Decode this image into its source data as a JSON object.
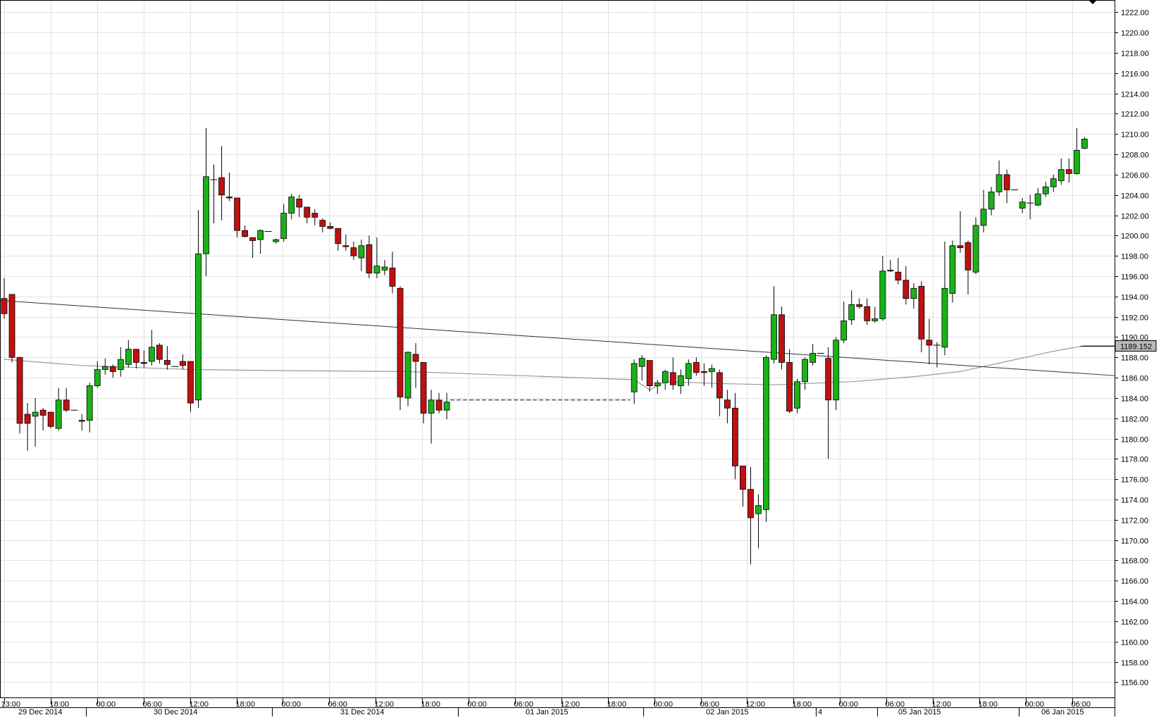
{
  "chart_data": {
    "type": "candlestick",
    "title": "",
    "xlabel": "",
    "ylabel": "",
    "ylim": [
      1154.5,
      1223.2
    ],
    "grid": true,
    "y_ticks": [
      "1222.00",
      "1220.00",
      "1218.00",
      "1216.00",
      "1214.00",
      "1212.00",
      "1210.00",
      "1208.00",
      "1206.00",
      "1204.00",
      "1202.00",
      "1200.00",
      "1198.00",
      "1196.00",
      "1194.00",
      "1192.00",
      "1190.00",
      "1188.00",
      "1186.00",
      "1184.00",
      "1182.00",
      "1180.00",
      "1178.00",
      "1176.00",
      "1174.00",
      "1172.00",
      "1170.00",
      "1168.00",
      "1166.00",
      "1164.00",
      "1162.00",
      "1160.00",
      "1158.00",
      "1156.00"
    ],
    "time_ticks": [
      "13:00",
      "18:00",
      "00:00",
      "06:00",
      "12:00",
      "18:00",
      "00:00",
      "06:00",
      "12:00",
      "18:00",
      "00:00",
      "06:00",
      "12:00",
      "18:00",
      "00:00",
      "06:00",
      "12:00",
      "18:00",
      "00:00",
      "06:00",
      "12:00",
      "18:00",
      "00:00",
      "06:00"
    ],
    "date_labels": [
      "29 Dec 2014",
      "30 Dec 2014",
      "31 Dec 2014",
      "01 Jan 2015",
      "02 Jan 2015",
      "4",
      "05 Jan 2015",
      "06 Jan 2015"
    ],
    "last_price": "1189.152",
    "colors": {
      "up": "#19b219",
      "down": "#c01010",
      "wick": "#000000",
      "grid": "#e2e2e2",
      "trend": "#333333",
      "average": "#999999"
    },
    "candles": [
      [
        1193.8,
        1195.8,
        1191.8,
        1192.3
      ],
      [
        1194.2,
        1194.2,
        1187.5,
        1188.0
      ],
      [
        1188.0,
        1188.0,
        1180.5,
        1181.5
      ],
      [
        1182.4,
        1183.5,
        1178.8,
        1181.5
      ],
      [
        1182.2,
        1184.0,
        1179.2,
        1182.6
      ],
      [
        1182.8,
        1183.0,
        1180.8,
        1182.3
      ],
      [
        1182.6,
        1182.6,
        1181.0,
        1181.2
      ],
      [
        1181.0,
        1185.0,
        1180.8,
        1183.8
      ],
      [
        1183.8,
        1185.0,
        1182.6,
        1182.8
      ],
      [
        1182.8,
        1182.8,
        1182.8,
        1182.8
      ],
      [
        1181.8,
        1182.4,
        1180.8,
        1181.7
      ],
      [
        1181.8,
        1185.5,
        1180.6,
        1185.2
      ],
      [
        1185.2,
        1187.6,
        1185.0,
        1186.8
      ],
      [
        1186.8,
        1187.9,
        1186.3,
        1187.1
      ],
      [
        1187.1,
        1187.3,
        1186.0,
        1186.6
      ],
      [
        1186.8,
        1189.0,
        1186.1,
        1187.8
      ],
      [
        1187.3,
        1189.7,
        1187.0,
        1188.8
      ],
      [
        1188.8,
        1188.8,
        1186.9,
        1187.5
      ],
      [
        1187.5,
        1188.7,
        1187.0,
        1187.4
      ],
      [
        1187.6,
        1190.7,
        1187.2,
        1189.0
      ],
      [
        1189.2,
        1189.4,
        1187.4,
        1187.8
      ],
      [
        1187.7,
        1189.1,
        1186.8,
        1187.3
      ],
      [
        1187.1,
        1187.1,
        1187.1,
        1187.1
      ],
      [
        1187.6,
        1188.3,
        1186.8,
        1187.2
      ],
      [
        1187.6,
        1187.6,
        1182.6,
        1183.5
      ],
      [
        1183.8,
        1202.5,
        1183.0,
        1198.2
      ],
      [
        1198.2,
        1210.6,
        1196.0,
        1205.8
      ],
      [
        1205.5,
        1207.0,
        1201.2,
        1205.5
      ],
      [
        1205.7,
        1208.8,
        1201.5,
        1204.0
      ],
      [
        1203.8,
        1206.2,
        1203.4,
        1203.7
      ],
      [
        1203.7,
        1203.7,
        1199.8,
        1200.5
      ],
      [
        1200.5,
        1201.0,
        1199.8,
        1199.9
      ],
      [
        1199.8,
        1199.8,
        1197.8,
        1199.5
      ],
      [
        1199.6,
        1200.6,
        1198.2,
        1200.5
      ],
      [
        1200.4,
        1200.4,
        1200.4,
        1200.4
      ],
      [
        1199.4,
        1199.7,
        1199.2,
        1199.6
      ],
      [
        1199.7,
        1203.1,
        1199.4,
        1202.2
      ],
      [
        1202.2,
        1204.1,
        1201.6,
        1203.8
      ],
      [
        1203.6,
        1204.0,
        1201.8,
        1202.8
      ],
      [
        1202.8,
        1202.8,
        1201.2,
        1201.8
      ],
      [
        1202.2,
        1202.6,
        1201.0,
        1201.8
      ],
      [
        1201.5,
        1201.7,
        1200.3,
        1200.9
      ],
      [
        1200.9,
        1201.3,
        1200.6,
        1200.7
      ],
      [
        1200.7,
        1200.7,
        1198.5,
        1199.2
      ],
      [
        1199.0,
        1200.1,
        1198.5,
        1198.9
      ],
      [
        1198.8,
        1199.4,
        1197.6,
        1198.0
      ],
      [
        1197.8,
        1199.6,
        1196.5,
        1199.0
      ],
      [
        1199.1,
        1200.0,
        1195.8,
        1196.3
      ],
      [
        1196.3,
        1199.8,
        1195.8,
        1197.0
      ],
      [
        1196.6,
        1197.6,
        1196.1,
        1196.9
      ],
      [
        1196.8,
        1198.4,
        1194.3,
        1195.0
      ],
      [
        1194.8,
        1195.0,
        1182.8,
        1184.1
      ],
      [
        1184.0,
        1188.6,
        1183.2,
        1188.5
      ],
      [
        1188.3,
        1189.4,
        1185.0,
        1187.6
      ],
      [
        1187.5,
        1187.5,
        1181.5,
        1182.5
      ],
      [
        1182.5,
        1184.8,
        1179.5,
        1183.8
      ],
      [
        1183.8,
        1184.5,
        1182.5,
        1182.8
      ],
      [
        1182.8,
        1184.5,
        1181.9,
        1183.6
      ],
      [
        1184.6,
        1187.8,
        1183.4,
        1187.4
      ],
      [
        1187.1,
        1188.2,
        1185.7,
        1187.9
      ],
      [
        1187.7,
        1187.7,
        1184.6,
        1185.2
      ],
      [
        1185.2,
        1185.8,
        1184.4,
        1185.5
      ],
      [
        1185.5,
        1186.8,
        1184.8,
        1186.6
      ],
      [
        1186.5,
        1188.0,
        1184.8,
        1185.3
      ],
      [
        1185.2,
        1186.8,
        1184.4,
        1186.2
      ],
      [
        1185.9,
        1187.8,
        1185.2,
        1187.4
      ],
      [
        1187.5,
        1188.0,
        1186.2,
        1186.5
      ],
      [
        1186.6,
        1187.4,
        1185.2,
        1186.5
      ],
      [
        1186.6,
        1187.3,
        1185.0,
        1186.9
      ],
      [
        1186.5,
        1186.8,
        1182.2,
        1184.0
      ],
      [
        1183.8,
        1184.8,
        1181.5,
        1183.0
      ],
      [
        1183.0,
        1184.5,
        1176.0,
        1177.3
      ],
      [
        1177.3,
        1177.3,
        1173.3,
        1175.0
      ],
      [
        1175.0,
        1177.2,
        1167.6,
        1172.2
      ],
      [
        1172.6,
        1174.5,
        1169.2,
        1173.4
      ],
      [
        1173.0,
        1188.2,
        1171.8,
        1188.0
      ],
      [
        1187.8,
        1195.0,
        1187.4,
        1192.2
      ],
      [
        1192.2,
        1193.0,
        1186.8,
        1187.5
      ],
      [
        1187.5,
        1188.8,
        1182.5,
        1182.7
      ],
      [
        1183.0,
        1185.9,
        1182.5,
        1185.6
      ],
      [
        1185.6,
        1188.0,
        1184.8,
        1187.8
      ],
      [
        1187.5,
        1189.3,
        1187.2,
        1188.4
      ],
      [
        1188.4,
        1188.4,
        1188.4,
        1188.4
      ],
      [
        1187.9,
        1189.0,
        1178.0,
        1183.8
      ],
      [
        1183.8,
        1190.0,
        1182.8,
        1189.7
      ],
      [
        1189.7,
        1193.5,
        1189.4,
        1191.6
      ],
      [
        1191.7,
        1194.6,
        1191.2,
        1193.2
      ],
      [
        1193.2,
        1193.8,
        1192.8,
        1193.0
      ],
      [
        1193.0,
        1193.8,
        1191.2,
        1191.6
      ],
      [
        1191.6,
        1193.0,
        1191.4,
        1191.8
      ],
      [
        1191.8,
        1198.0,
        1191.6,
        1196.5
      ],
      [
        1196.5,
        1197.6,
        1196.4,
        1196.6
      ],
      [
        1196.4,
        1197.8,
        1195.2,
        1195.6
      ],
      [
        1195.6,
        1197.0,
        1193.2,
        1193.8
      ],
      [
        1193.8,
        1195.3,
        1192.8,
        1194.8
      ],
      [
        1195.0,
        1195.5,
        1188.5,
        1189.8
      ],
      [
        1189.7,
        1191.8,
        1187.3,
        1189.2
      ],
      [
        1189.2,
        1189.5,
        1187.0,
        1189.2
      ],
      [
        1189.0,
        1199.4,
        1188.2,
        1194.8
      ],
      [
        1194.3,
        1199.5,
        1193.4,
        1199.0
      ],
      [
        1199.0,
        1202.4,
        1198.3,
        1198.8
      ],
      [
        1199.3,
        1199.5,
        1194.2,
        1196.6
      ],
      [
        1196.4,
        1201.8,
        1196.2,
        1201.0
      ],
      [
        1201.0,
        1204.5,
        1200.3,
        1202.6
      ],
      [
        1202.6,
        1204.8,
        1202.0,
        1204.3
      ],
      [
        1204.3,
        1207.4,
        1203.9,
        1206.0
      ],
      [
        1206.0,
        1206.5,
        1203.2,
        1204.5
      ],
      [
        1204.5,
        1204.5,
        1204.5,
        1204.5
      ],
      [
        1202.7,
        1203.7,
        1202.2,
        1203.3
      ],
      [
        1203.2,
        1204.0,
        1201.6,
        1203.2
      ],
      [
        1203.0,
        1204.7,
        1202.9,
        1204.1
      ],
      [
        1204.1,
        1205.3,
        1203.8,
        1204.8
      ],
      [
        1204.8,
        1206.0,
        1204.3,
        1205.6
      ],
      [
        1205.4,
        1207.6,
        1205.0,
        1206.5
      ],
      [
        1206.5,
        1207.6,
        1205.2,
        1206.1
      ],
      [
        1206.1,
        1210.6,
        1206.0,
        1208.4
      ],
      [
        1208.6,
        1209.7,
        1208.5,
        1209.5
      ]
    ],
    "trend_line": {
      "from": [
        0,
        1193.6
      ],
      "to": [
        123.2,
        1186.2
      ]
    },
    "moving_average": [
      [
        0,
        1187.8
      ],
      [
        10,
        1187.2
      ],
      [
        24,
        1186.8
      ],
      [
        35,
        1186.7
      ],
      [
        52,
        1186.6
      ],
      [
        58,
        1185.8
      ],
      [
        60,
        1184.8
      ],
      [
        62,
        1185.6
      ],
      [
        70,
        1185.4
      ],
      [
        76,
        1185.3
      ],
      [
        86,
        1185.6
      ],
      [
        94,
        1186.1
      ],
      [
        100,
        1186.6
      ],
      [
        106,
        1187.6
      ],
      [
        112,
        1188.6
      ],
      [
        116,
        1189.15
      ],
      [
        123,
        1189.15
      ]
    ],
    "gap_line": {
      "from": 58,
      "to": 57.5,
      "price": 1183.8
    }
  }
}
